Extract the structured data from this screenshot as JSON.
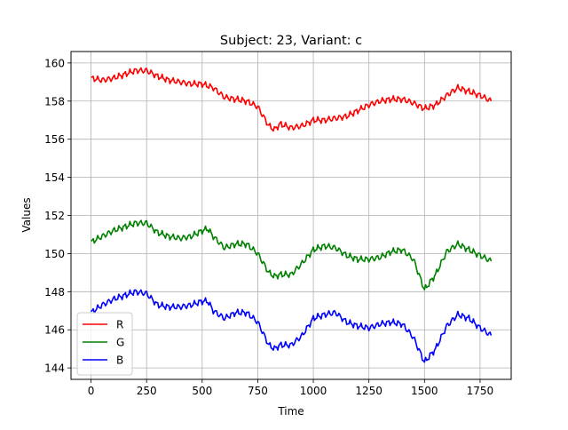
{
  "chart_data": {
    "type": "line",
    "title": "Subject: 23, Variant: c",
    "xlabel": "Time",
    "ylabel": "Values",
    "xlim": [
      -90,
      1890
    ],
    "ylim": [
      143.4,
      160.6
    ],
    "xticks": [
      0,
      250,
      500,
      750,
      1000,
      1250,
      1500,
      1750
    ],
    "yticks": [
      144,
      146,
      148,
      150,
      152,
      154,
      156,
      158,
      160
    ],
    "grid": true,
    "legend_position": "lower-left",
    "series": [
      {
        "name": "R",
        "color": "#ff0000",
        "x": [
          0,
          50,
          100,
          150,
          200,
          250,
          300,
          350,
          400,
          450,
          500,
          550,
          600,
          650,
          700,
          750,
          800,
          825,
          850,
          900,
          950,
          1000,
          1050,
          1100,
          1150,
          1200,
          1250,
          1300,
          1350,
          1400,
          1450,
          1500,
          1550,
          1600,
          1650,
          1700,
          1750,
          1800
        ],
        "y": [
          159.2,
          159.1,
          159.2,
          159.4,
          159.6,
          159.6,
          159.3,
          159.1,
          159.0,
          158.9,
          158.9,
          158.7,
          158.2,
          158.1,
          158.0,
          157.7,
          156.7,
          156.5,
          156.8,
          156.6,
          156.7,
          157.0,
          157.0,
          157.1,
          157.2,
          157.5,
          157.8,
          158.0,
          158.1,
          158.1,
          157.9,
          157.6,
          157.8,
          158.3,
          158.7,
          158.5,
          158.3,
          158.0
        ]
      },
      {
        "name": "G",
        "color": "#008000",
        "x": [
          0,
          50,
          100,
          150,
          200,
          250,
          300,
          350,
          400,
          450,
          500,
          525,
          550,
          600,
          650,
          700,
          750,
          800,
          825,
          850,
          900,
          950,
          1000,
          1050,
          1100,
          1150,
          1200,
          1250,
          1300,
          1350,
          1400,
          1450,
          1500,
          1550,
          1600,
          1650,
          1700,
          1750,
          1800
        ],
        "y": [
          150.6,
          150.9,
          151.2,
          151.4,
          151.6,
          151.6,
          151.1,
          150.9,
          150.8,
          150.9,
          151.2,
          151.3,
          150.9,
          150.3,
          150.5,
          150.5,
          150.0,
          149.0,
          148.8,
          148.9,
          148.9,
          149.5,
          150.2,
          150.4,
          150.3,
          149.9,
          149.7,
          149.7,
          149.8,
          150.1,
          150.2,
          149.7,
          148.1,
          148.9,
          150.1,
          150.5,
          150.2,
          149.9,
          149.6
        ]
      },
      {
        "name": "B",
        "color": "#0000ff",
        "x": [
          0,
          50,
          100,
          150,
          200,
          250,
          300,
          350,
          400,
          450,
          500,
          525,
          550,
          600,
          650,
          700,
          750,
          800,
          825,
          850,
          900,
          950,
          1000,
          1050,
          1100,
          1150,
          1200,
          1250,
          1300,
          1350,
          1400,
          1450,
          1500,
          1550,
          1600,
          1650,
          1700,
          1750,
          1800
        ],
        "y": [
          146.9,
          147.3,
          147.6,
          147.8,
          148.0,
          147.9,
          147.3,
          147.2,
          147.2,
          147.3,
          147.5,
          147.5,
          147.0,
          146.6,
          146.9,
          146.9,
          146.4,
          145.2,
          145.0,
          145.2,
          145.2,
          145.7,
          146.6,
          146.8,
          146.9,
          146.4,
          146.2,
          146.1,
          146.3,
          146.4,
          146.3,
          145.6,
          144.3,
          145.0,
          146.2,
          146.8,
          146.6,
          146.1,
          145.7
        ]
      }
    ]
  }
}
